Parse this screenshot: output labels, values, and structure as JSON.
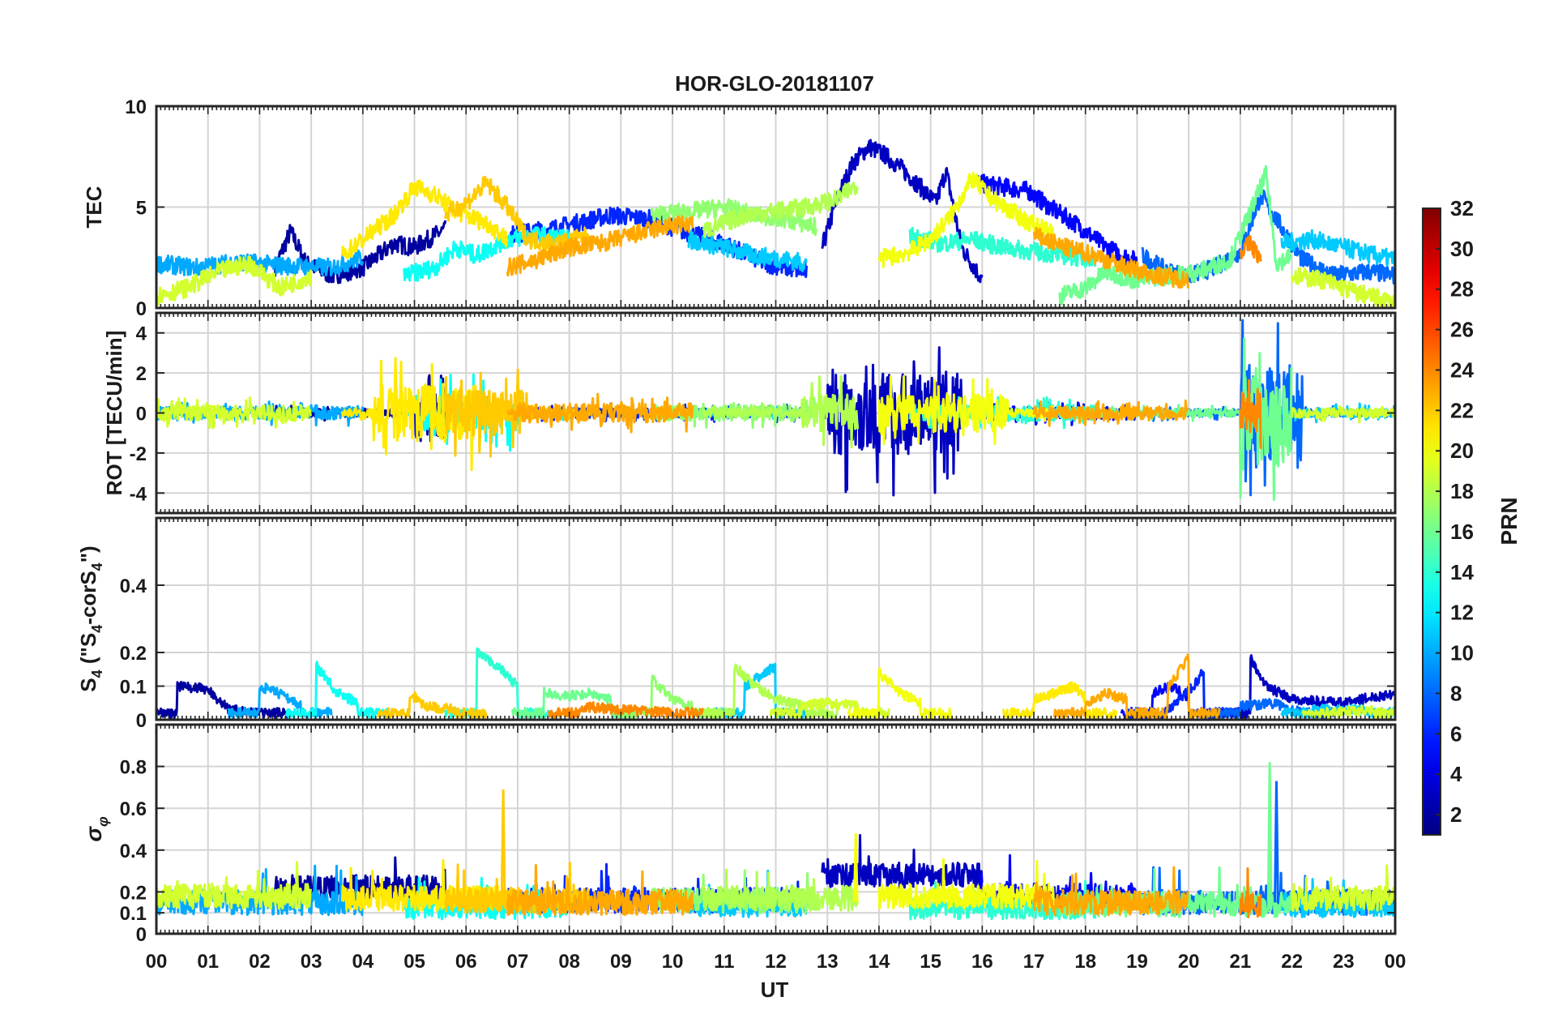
{
  "chart_data": {
    "type": "line",
    "title": "HOR-GLO-20181107",
    "xlabel": "UT",
    "x_ticks": [
      "00",
      "01",
      "02",
      "03",
      "04",
      "05",
      "06",
      "07",
      "08",
      "09",
      "10",
      "11",
      "12",
      "13",
      "14",
      "15",
      "16",
      "17",
      "18",
      "19",
      "20",
      "21",
      "22",
      "23",
      "00"
    ],
    "xlim": [
      0,
      24
    ],
    "grid": true,
    "panels": [
      {
        "id": "tec",
        "ylabel": "TEC",
        "ylim": [
          0,
          10
        ],
        "yticks": [
          0,
          5,
          10
        ]
      },
      {
        "id": "rot",
        "ylabel": "ROT [TECU/min]",
        "ylim": [
          -5,
          5
        ],
        "yticks": [
          -4,
          -2,
          0,
          2,
          4
        ]
      },
      {
        "id": "s4",
        "ylabel": "S4 (\"S4-corS4\")",
        "ylim": [
          0,
          0.6
        ],
        "yticks": [
          0,
          0.1,
          0.2,
          0.4
        ]
      },
      {
        "id": "sigphi",
        "ylabel": "σφ",
        "ylim": [
          0,
          1
        ],
        "yticks": [
          0,
          0.1,
          0.2,
          0.4,
          0.6,
          0.8
        ]
      }
    ],
    "colorbar": {
      "label": "PRN",
      "range": [
        1,
        32
      ],
      "ticks": [
        2,
        4,
        6,
        8,
        10,
        12,
        14,
        16,
        18,
        20,
        22,
        24,
        26,
        28,
        30,
        32
      ],
      "colormap": "jet"
    },
    "series": [
      {
        "prn": 2,
        "tec": [
          [
            2.3,
            2.0
          ],
          [
            2.6,
            3.8
          ],
          [
            2.9,
            2.2
          ],
          [
            3.4,
            1.6
          ],
          [
            4.0,
            2.0
          ],
          [
            4.6,
            3.2
          ],
          [
            5.0,
            3.0
          ],
          [
            5.6,
            3.9
          ]
        ],
        "rot_active": [
          [
            5.0,
            6.0,
            1.6
          ]
        ],
        "s4": [
          [
            0.4,
            0.1
          ],
          [
            1.0,
            0.09
          ],
          [
            1.4,
            0.03
          ],
          [
            2.0,
            0.02
          ]
        ],
        "sig_base": 0.22
      },
      {
        "prn": 3,
        "tec": [
          [
            12.9,
            3.0
          ],
          [
            13.2,
            5.5
          ],
          [
            13.5,
            7.2
          ],
          [
            13.8,
            8.0
          ],
          [
            14.1,
            7.6
          ],
          [
            14.4,
            7.0
          ],
          [
            14.8,
            6.0
          ],
          [
            15.1,
            5.2
          ],
          [
            15.3,
            6.8
          ],
          [
            15.6,
            3.0
          ],
          [
            16.0,
            1.4
          ]
        ],
        "rot_active": [
          [
            13.0,
            15.6,
            2.6
          ]
        ],
        "s4": [
          [
            21.2,
            0.18
          ],
          [
            21.5,
            0.1
          ],
          [
            22.0,
            0.06
          ],
          [
            23.0,
            0.05
          ],
          [
            24.0,
            0.08
          ]
        ],
        "sig_base": 0.28
      },
      {
        "prn": 5,
        "tec": [
          [
            15.9,
            6.2
          ],
          [
            16.4,
            6.0
          ],
          [
            16.9,
            5.8
          ],
          [
            17.3,
            5.0
          ],
          [
            17.8,
            4.2
          ],
          [
            18.4,
            3.0
          ],
          [
            19.0,
            2.3
          ]
        ],
        "rot_active": [
          [
            16.0,
            18.5,
            0.4
          ]
        ],
        "s4": [
          [
            19.3,
            0.08
          ],
          [
            19.7,
            0.1
          ],
          [
            20.0,
            0.06
          ]
        ],
        "sig_base": 0.18
      },
      {
        "prn": 6,
        "tec": [
          [
            6.8,
            3.6
          ],
          [
            7.8,
            4.0
          ],
          [
            8.8,
            4.6
          ],
          [
            9.6,
            4.4
          ],
          [
            10.2,
            3.8
          ],
          [
            11.0,
            3.2
          ],
          [
            11.8,
            2.2
          ],
          [
            12.6,
            1.8
          ]
        ],
        "rot_active": [
          [
            7.0,
            12.5,
            0.3
          ]
        ],
        "s4": [
          [
            19.4,
            0.0
          ],
          [
            19.8,
            0.06
          ],
          [
            20.1,
            0.1
          ],
          [
            20.3,
            0.15
          ]
        ],
        "sig_base": 0.16
      },
      {
        "prn": 8,
        "tec": [
          [
            19.1,
            2.6
          ],
          [
            19.6,
            1.8
          ],
          [
            20.0,
            1.6
          ],
          [
            20.5,
            2.0
          ],
          [
            21.0,
            2.8
          ],
          [
            21.4,
            5.6
          ],
          [
            21.8,
            4.0
          ],
          [
            22.2,
            2.4
          ],
          [
            22.8,
            1.6
          ],
          [
            23.5,
            1.8
          ],
          [
            24.0,
            1.6
          ]
        ],
        "rot_active": [
          [
            21.0,
            22.2,
            3.0
          ]
        ],
        "s4": [
          [
            21.0,
            0.04
          ],
          [
            21.6,
            0.05
          ],
          [
            22.2,
            0.02
          ]
        ],
        "sig_base": 0.15
      },
      {
        "prn": 10,
        "tec": [
          [
            0.0,
            2.2
          ],
          [
            0.8,
            2.0
          ],
          [
            1.6,
            2.3
          ],
          [
            2.4,
            2.1
          ],
          [
            3.4,
            2.0
          ],
          [
            4.0,
            2.5
          ]
        ],
        "rot_active": [
          [
            0.0,
            4.0,
            0.4
          ]
        ],
        "s4": [
          [
            2.0,
            0.1
          ],
          [
            2.5,
            0.07
          ],
          [
            2.8,
            0.04
          ]
        ],
        "sig_base": 0.15
      },
      {
        "prn": 11,
        "tec": [
          [
            10.3,
            3.4
          ],
          [
            11.0,
            3.0
          ],
          [
            11.6,
            2.6
          ],
          [
            12.2,
            2.4
          ],
          [
            12.6,
            2.2
          ]
        ],
        "rot_active": [
          [
            10.0,
            12.5,
            0.2
          ]
        ],
        "s4": [
          [
            11.4,
            0.1
          ],
          [
            11.8,
            0.14
          ],
          [
            12.0,
            0.16
          ]
        ],
        "sig_base": 0.14
      },
      {
        "prn": 11,
        "tec": [
          [
            21.8,
            3.2
          ],
          [
            22.4,
            3.4
          ],
          [
            23.0,
            3.0
          ],
          [
            23.6,
            2.6
          ],
          [
            24.0,
            2.4
          ]
        ],
        "rot_active": [
          [
            22.0,
            24.0,
            0.3
          ]
        ],
        "s4": [
          [
            22.4,
            0.03
          ],
          [
            23.4,
            0.03
          ]
        ],
        "sig_base": 0.14
      },
      {
        "prn": 13,
        "tec": [
          [
            4.8,
            1.6
          ],
          [
            5.4,
            2.0
          ],
          [
            5.8,
            3.0
          ],
          [
            6.2,
            2.6
          ],
          [
            6.8,
            3.4
          ],
          [
            7.4,
            3.6
          ],
          [
            8.0,
            3.4
          ]
        ],
        "rot_active": [
          [
            5.0,
            7.0,
            1.2
          ]
        ],
        "s4": [
          [
            3.1,
            0.16
          ],
          [
            3.5,
            0.08
          ],
          [
            3.9,
            0.05
          ]
        ],
        "sig_base": 0.13
      },
      {
        "prn": 14,
        "tec": [
          [
            14.6,
            3.6
          ],
          [
            15.2,
            3.2
          ],
          [
            15.8,
            3.4
          ],
          [
            16.4,
            3.0
          ],
          [
            17.0,
            2.8
          ],
          [
            17.6,
            2.6
          ],
          [
            18.2,
            2.4
          ]
        ],
        "rot_active": [
          [
            14.6,
            18.2,
            0.5
          ]
        ],
        "s4": [
          [
            6.2,
            0.2
          ],
          [
            6.6,
            0.16
          ],
          [
            7.0,
            0.1
          ]
        ],
        "sig_base": 0.13
      },
      {
        "prn": 16,
        "tec": [
          [
            17.5,
            0.6
          ],
          [
            18.0,
            1.0
          ],
          [
            18.4,
            1.8
          ],
          [
            18.9,
            1.4
          ],
          [
            19.6,
            1.6
          ],
          [
            20.2,
            1.8
          ],
          [
            20.8,
            2.4
          ],
          [
            21.2,
            4.8
          ],
          [
            21.5,
            6.6
          ],
          [
            21.7,
            2.2
          ],
          [
            22.0,
            2.6
          ]
        ],
        "rot_active": [
          [
            21.0,
            22.0,
            3.2
          ]
        ],
        "s4": [
          [
            7.5,
            0.08
          ],
          [
            8.0,
            0.07
          ],
          [
            8.4,
            0.08
          ],
          [
            8.8,
            0.06
          ]
        ],
        "sig_base": 0.14
      },
      {
        "prn": 17,
        "tec": [
          [
            9.6,
            4.6
          ],
          [
            10.4,
            4.8
          ],
          [
            11.0,
            5.0
          ],
          [
            11.6,
            4.6
          ],
          [
            12.2,
            4.4
          ],
          [
            12.8,
            4.0
          ]
        ],
        "rot_active": [
          [
            9.5,
            12.8,
            0.5
          ]
        ],
        "s4": [
          [
            9.6,
            0.12
          ],
          [
            10.0,
            0.06
          ],
          [
            10.4,
            0.04
          ]
        ],
        "sig_base": 0.16
      },
      {
        "prn": 18,
        "tec": [
          [
            10.6,
            3.8
          ],
          [
            11.4,
            4.6
          ],
          [
            12.0,
            4.8
          ],
          [
            12.6,
            5.0
          ],
          [
            13.2,
            5.4
          ],
          [
            13.6,
            6.2
          ]
        ],
        "rot_active": [
          [
            12.5,
            14.0,
            1.2
          ]
        ],
        "s4": [
          [
            11.2,
            0.16
          ],
          [
            11.6,
            0.1
          ],
          [
            12.0,
            0.06
          ],
          [
            12.6,
            0.04
          ]
        ],
        "sig_base": 0.17
      },
      {
        "prn": 19,
        "tec": [
          [
            0.0,
            0.6
          ],
          [
            0.6,
            1.0
          ],
          [
            1.2,
            1.8
          ],
          [
            1.8,
            2.2
          ],
          [
            2.4,
            1.0
          ],
          [
            3.0,
            1.6
          ]
        ],
        "rot_active": [
          [
            0.0,
            3.0,
            0.5
          ]
        ],
        "s4": [
          [
            12.5,
            0.04
          ],
          [
            13.0,
            0.05
          ],
          [
            13.6,
            0.04
          ]
        ],
        "sig_base": 0.18
      },
      {
        "prn": 19,
        "tec": [
          [
            22.0,
            1.6
          ],
          [
            22.6,
            1.4
          ],
          [
            23.2,
            0.8
          ],
          [
            23.8,
            0.4
          ],
          [
            24.0,
            0.2
          ]
        ],
        "rot_active": [
          [
            22.0,
            24.0,
            0.3
          ]
        ],
        "s4": [
          [
            22.8,
            0.02
          ],
          [
            23.6,
            0.03
          ]
        ],
        "sig_base": 0.17
      },
      {
        "prn": 20,
        "tec": [
          [
            14.0,
            2.4
          ],
          [
            14.6,
            2.8
          ],
          [
            15.0,
            3.4
          ],
          [
            15.4,
            4.6
          ],
          [
            15.8,
            6.4
          ],
          [
            16.2,
            5.4
          ],
          [
            16.8,
            4.4
          ],
          [
            17.4,
            3.6
          ]
        ],
        "rot_active": [
          [
            14.0,
            16.5,
            1.2
          ]
        ],
        "s4": [
          [
            14.0,
            0.14
          ],
          [
            14.4,
            0.08
          ],
          [
            14.8,
            0.05
          ]
        ],
        "sig_base": 0.18
      },
      {
        "prn": 21,
        "tec": [
          [
            3.6,
            2.6
          ],
          [
            4.0,
            3.4
          ],
          [
            4.6,
            4.6
          ],
          [
            5.0,
            6.0
          ],
          [
            5.4,
            5.6
          ],
          [
            5.8,
            4.8
          ],
          [
            6.4,
            4.2
          ],
          [
            6.8,
            3.4
          ]
        ],
        "rot_active": [
          [
            4.2,
            6.2,
            1.8
          ]
        ],
        "s4": [
          [
            17.0,
            0.06
          ],
          [
            17.4,
            0.08
          ],
          [
            17.8,
            0.1
          ],
          [
            18.0,
            0.06
          ]
        ],
        "sig_base": 0.17
      },
      {
        "prn": 22,
        "tec": [
          [
            5.6,
            4.6
          ],
          [
            6.0,
            5.2
          ],
          [
            6.4,
            6.2
          ],
          [
            6.8,
            5.0
          ],
          [
            7.2,
            3.4
          ],
          [
            7.8,
            3.2
          ],
          [
            8.4,
            3.6
          ]
        ],
        "rot_active": [
          [
            5.4,
            7.2,
            1.4
          ]
        ],
        "s4": [
          [
            4.9,
            0.08
          ],
          [
            5.2,
            0.04
          ],
          [
            5.8,
            0.03
          ]
        ],
        "sig_base": 0.16
      },
      {
        "prn": 23,
        "tec": [
          [
            6.8,
            2.0
          ],
          [
            7.4,
            2.4
          ],
          [
            8.0,
            3.0
          ],
          [
            8.6,
            3.2
          ],
          [
            9.2,
            3.6
          ],
          [
            9.8,
            4.0
          ],
          [
            10.4,
            4.2
          ]
        ],
        "rot_active": [
          [
            7.0,
            10.5,
            0.6
          ]
        ],
        "s4": [
          [
            19.6,
            0.1
          ],
          [
            19.9,
            0.16
          ],
          [
            20.0,
            0.19
          ]
        ],
        "sig_base": 0.15
      },
      {
        "prn": 23,
        "tec": [
          [
            17.0,
            3.6
          ],
          [
            17.6,
            3.0
          ],
          [
            18.2,
            2.6
          ],
          [
            18.8,
            2.0
          ],
          [
            19.4,
            1.6
          ],
          [
            20.0,
            1.4
          ]
        ],
        "rot_active": [
          [
            17.0,
            20.0,
            0.4
          ]
        ],
        "s4": [
          [
            18.0,
            0.04
          ],
          [
            18.4,
            0.08
          ],
          [
            18.8,
            0.06
          ]
        ],
        "sig_base": 0.15
      },
      {
        "prn": 24,
        "tec": [
          [
            21.0,
            2.8
          ],
          [
            21.2,
            3.2
          ],
          [
            21.4,
            2.4
          ]
        ],
        "rot_active": [
          [
            21.0,
            21.5,
            1.2
          ]
        ],
        "s4": [
          [
            8.2,
            0.04
          ],
          [
            9.0,
            0.03
          ],
          [
            10.0,
            0.02
          ]
        ],
        "sig_base": 0.14
      }
    ]
  }
}
